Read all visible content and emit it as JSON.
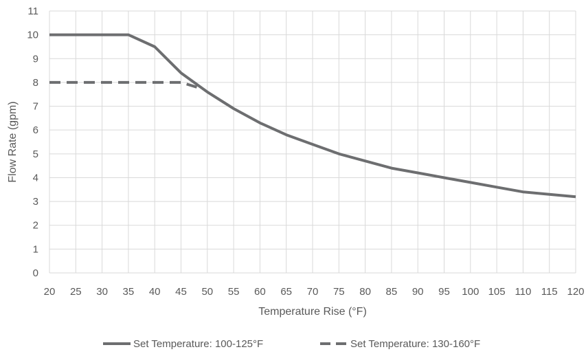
{
  "chart_data": {
    "type": "line",
    "xlabel": "Temperature Rise (°F)",
    "ylabel": "Flow Rate (gpm)",
    "xlim": [
      20,
      120
    ],
    "ylim": [
      0,
      11
    ],
    "x_ticks": [
      "20",
      "25",
      "30",
      "35",
      "40",
      "45",
      "50",
      "55",
      "60",
      "65",
      "70",
      "75",
      "80",
      "85",
      "90",
      "95",
      "100",
      "105",
      "110",
      "115",
      "120"
    ],
    "y_ticks": [
      "0",
      "1",
      "2",
      "3",
      "4",
      "5",
      "6",
      "7",
      "8",
      "9",
      "10",
      "11"
    ],
    "grid": true,
    "legend_position": "bottom",
    "series": [
      {
        "name": "Set Temperature: 100-125°F",
        "style": "solid",
        "color": "#6d6e70",
        "points": [
          [
            20,
            10
          ],
          [
            25,
            10
          ],
          [
            30,
            10
          ],
          [
            35,
            10
          ],
          [
            40,
            9.5
          ],
          [
            45,
            8.4
          ],
          [
            50,
            7.6
          ],
          [
            55,
            6.9
          ],
          [
            60,
            6.3
          ],
          [
            65,
            5.8
          ],
          [
            70,
            5.4
          ],
          [
            75,
            5.0
          ],
          [
            80,
            4.7
          ],
          [
            85,
            4.4
          ],
          [
            90,
            4.2
          ],
          [
            95,
            4.0
          ],
          [
            100,
            3.8
          ],
          [
            105,
            3.6
          ],
          [
            110,
            3.4
          ],
          [
            115,
            3.3
          ],
          [
            120,
            3.2
          ]
        ]
      },
      {
        "name": "Set Temperature: 130-160°F",
        "style": "dashed",
        "color": "#6d6e70",
        "points": [
          [
            20,
            8
          ],
          [
            25,
            8
          ],
          [
            30,
            8
          ],
          [
            35,
            8
          ],
          [
            40,
            8
          ],
          [
            45,
            8
          ],
          [
            48,
            7.8
          ]
        ]
      }
    ]
  }
}
